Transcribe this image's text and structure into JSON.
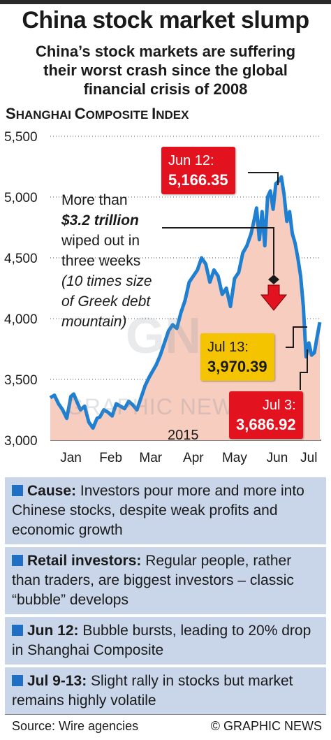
{
  "headline": "China stock market slump",
  "subhead_lines": [
    "China’s stock markets are suffering",
    "their worst crash since the global",
    "financial crisis of 2008"
  ],
  "index_title_first": "S",
  "index_title_rest": "HANGHAI ",
  "index_title_second": "C",
  "index_title_rest2": "OMPOSITE ",
  "index_title_third": "I",
  "index_title_rest3": "NDEX",
  "note": {
    "l1": "More than",
    "l2": "$3.2 trillion",
    "l3": "wiped out in",
    "l4": "three weeks",
    "l5": "(10 times size",
    "l6": "of Greek debt",
    "l7": "mountain)"
  },
  "callouts": {
    "jun12_label": "Jun 12:",
    "jun12_value": "5,166.35",
    "jul13_label": "Jul 13:",
    "jul13_value": "3,970.39",
    "jul3_label": "Jul 3:",
    "jul3_value": "3,686.92"
  },
  "year_label": "2015",
  "watermark": "GRAPHIC NEWS",
  "watermark_logo": "GN",
  "panels": [
    {
      "key": "Cause:",
      "text": " Investors pour more and more into Chinese stocks, despite weak profits and economic growth"
    },
    {
      "key": "Retail investors:",
      "text": " Regular people, rather than traders, are biggest investors – classic “bubble” develops"
    },
    {
      "key": "Jun 12:",
      "text": " Bubble bursts, leading to 20% drop in Shanghai Composite"
    },
    {
      "key": "Jul 9-13:",
      "text": " Slight rally in stocks but market remains highly volatile"
    }
  ],
  "footer": {
    "source": "Source: Wire agencies",
    "copyright": "© GRAPHIC NEWS"
  },
  "colors": {
    "line": "#1f7fd0",
    "area": "#f6cdbf",
    "red": "#e2121f",
    "yellow": "#f5c400",
    "panel": "#c9d6ea",
    "square": "#1f6fc5"
  },
  "chart_data": {
    "type": "area",
    "title": "Shanghai Composite Index",
    "ylim": [
      3000,
      5500
    ],
    "yticks": [
      3000,
      3500,
      4000,
      4500,
      5000,
      5500
    ],
    "ytick_labels": [
      "3,000",
      "3,500",
      "4,000",
      "4,500",
      "5,000",
      "5,500"
    ],
    "xtick_labels": [
      "Jan",
      "Feb",
      "Mar",
      "Apr",
      "May",
      "Jun",
      "Jul"
    ],
    "x_range_days": [
      0,
      197
    ],
    "x_month_centers_days": [
      15,
      44,
      73,
      104,
      134,
      165,
      188
    ],
    "grid": "horizontal dotted",
    "series": [
      {
        "x_days": [
          0,
          3,
          6,
          9,
          12,
          15,
          17,
          20,
          22,
          25,
          28,
          31,
          34,
          36,
          39,
          42,
          45,
          48,
          51,
          54,
          57,
          60,
          63,
          66,
          69,
          72,
          75,
          77,
          80,
          83,
          86,
          89,
          92,
          95,
          98,
          101,
          104,
          107,
          110,
          113,
          116,
          119,
          122,
          125,
          128,
          131,
          134,
          137,
          140,
          143,
          146,
          148,
          150,
          152,
          154,
          156,
          158,
          160,
          162,
          164,
          166,
          168,
          170,
          172,
          174,
          176,
          178,
          180,
          182,
          184,
          186,
          188,
          190,
          192,
          194,
          196
        ],
        "values": [
          3350,
          3370,
          3300,
          3250,
          3180,
          3360,
          3380,
          3300,
          3250,
          3280,
          3150,
          3100,
          3180,
          3190,
          3250,
          3230,
          3200,
          3300,
          3280,
          3260,
          3320,
          3290,
          3250,
          3350,
          3450,
          3520,
          3580,
          3620,
          3700,
          3800,
          3900,
          3950,
          3920,
          4050,
          4150,
          4300,
          4350,
          4400,
          4500,
          4450,
          4300,
          4400,
          4350,
          4200,
          4250,
          4100,
          4330,
          4380,
          4540,
          4600,
          4700,
          4800,
          4910,
          4650,
          4880,
          4600,
          5000,
          5050,
          4900,
          5110,
          5130,
          5166.35,
          5020,
          4800,
          4880,
          4700,
          4620,
          4500,
          4350,
          4100,
          3686.92,
          3800,
          3700,
          3720,
          3850,
          3970.39
        ]
      }
    ],
    "annotations": [
      "Jun 12: 5,166.35",
      "Jul 13: 3,970.39",
      "Jul 3: 3,686.92",
      "2015"
    ]
  }
}
